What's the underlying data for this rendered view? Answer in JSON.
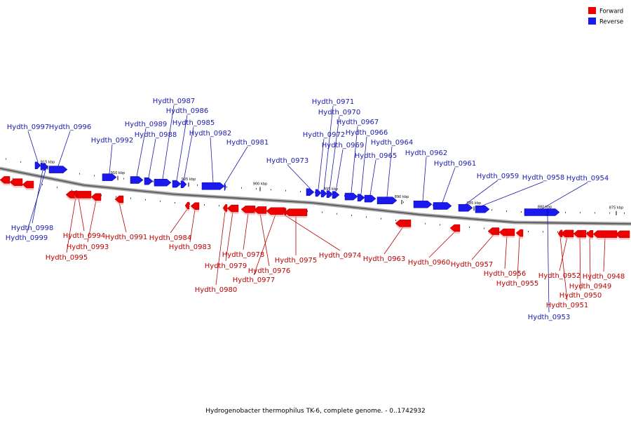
{
  "caption": "Hydrogenobacter thermophilus TK-6, complete genome. - 0..1742932",
  "legend": [
    {
      "label": "Forward",
      "color": "#ee0000"
    },
    {
      "label": "Reverse",
      "color": "#1a1aee"
    }
  ],
  "colors": {
    "forward": "#ee0000",
    "reverse": "#1a1aee",
    "forward_label": "#bb0000",
    "reverse_label": "#1a1aaa",
    "backbone": "#888888"
  },
  "ticks": [
    "915 kbp",
    "910 kbp",
    "905 kbp",
    "900 kbp",
    "895 kbp",
    "890 kbp",
    "885 kbp",
    "880 kbp",
    "875 kbp"
  ],
  "genes": [
    {
      "name": "Hydth_0997",
      "strand": "reverse"
    },
    {
      "name": "Hydth_0996",
      "strand": "reverse"
    },
    {
      "name": "Hydth_0998",
      "strand": "reverse"
    },
    {
      "name": "Hydth_0999",
      "strand": "reverse"
    },
    {
      "name": "Hydth_0992",
      "strand": "reverse"
    },
    {
      "name": "Hydth_0989",
      "strand": "reverse"
    },
    {
      "name": "Hydth_0988",
      "strand": "reverse"
    },
    {
      "name": "Hydth_0987",
      "strand": "reverse"
    },
    {
      "name": "Hydth_0986",
      "strand": "reverse"
    },
    {
      "name": "Hydth_0985",
      "strand": "reverse"
    },
    {
      "name": "Hydth_0982",
      "strand": "reverse"
    },
    {
      "name": "Hydth_0981",
      "strand": "reverse"
    },
    {
      "name": "Hydth_0973",
      "strand": "reverse"
    },
    {
      "name": "Hydth_0972",
      "strand": "reverse"
    },
    {
      "name": "Hydth_0971",
      "strand": "reverse"
    },
    {
      "name": "Hydth_0970",
      "strand": "reverse"
    },
    {
      "name": "Hydth_0969",
      "strand": "reverse"
    },
    {
      "name": "Hydth_0967",
      "strand": "reverse"
    },
    {
      "name": "Hydth_0966",
      "strand": "reverse"
    },
    {
      "name": "Hydth_0965",
      "strand": "reverse"
    },
    {
      "name": "Hydth_0964",
      "strand": "reverse"
    },
    {
      "name": "Hydth_0962",
      "strand": "reverse"
    },
    {
      "name": "Hydth_0961",
      "strand": "reverse"
    },
    {
      "name": "Hydth_0959",
      "strand": "reverse"
    },
    {
      "name": "Hydth_0958",
      "strand": "reverse"
    },
    {
      "name": "Hydth_0954",
      "strand": "reverse"
    },
    {
      "name": "Hydth_0953",
      "strand": "reverse"
    },
    {
      "name": "Hydth_0994",
      "strand": "forward"
    },
    {
      "name": "Hydth_0993",
      "strand": "forward"
    },
    {
      "name": "Hydth_0995",
      "strand": "forward"
    },
    {
      "name": "Hydth_0991",
      "strand": "forward"
    },
    {
      "name": "Hydth_0984",
      "strand": "forward"
    },
    {
      "name": "Hydth_0983",
      "strand": "forward"
    },
    {
      "name": "Hydth_0978",
      "strand": "forward"
    },
    {
      "name": "Hydth_0979",
      "strand": "forward"
    },
    {
      "name": "Hydth_0980",
      "strand": "forward"
    },
    {
      "name": "Hydth_0976",
      "strand": "forward"
    },
    {
      "name": "Hydth_0977",
      "strand": "forward"
    },
    {
      "name": "Hydth_0975",
      "strand": "forward"
    },
    {
      "name": "Hydth_0974",
      "strand": "forward"
    },
    {
      "name": "Hydth_0963",
      "strand": "forward"
    },
    {
      "name": "Hydth_0960",
      "strand": "forward"
    },
    {
      "name": "Hydth_0957",
      "strand": "forward"
    },
    {
      "name": "Hydth_0956",
      "strand": "forward"
    },
    {
      "name": "Hydth_0955",
      "strand": "forward"
    },
    {
      "name": "Hydth_0952",
      "strand": "forward"
    },
    {
      "name": "Hydth_0948",
      "strand": "forward"
    },
    {
      "name": "Hydth_0949",
      "strand": "forward"
    },
    {
      "name": "Hydth_0950",
      "strand": "forward"
    },
    {
      "name": "Hydth_0951",
      "strand": "forward"
    }
  ]
}
